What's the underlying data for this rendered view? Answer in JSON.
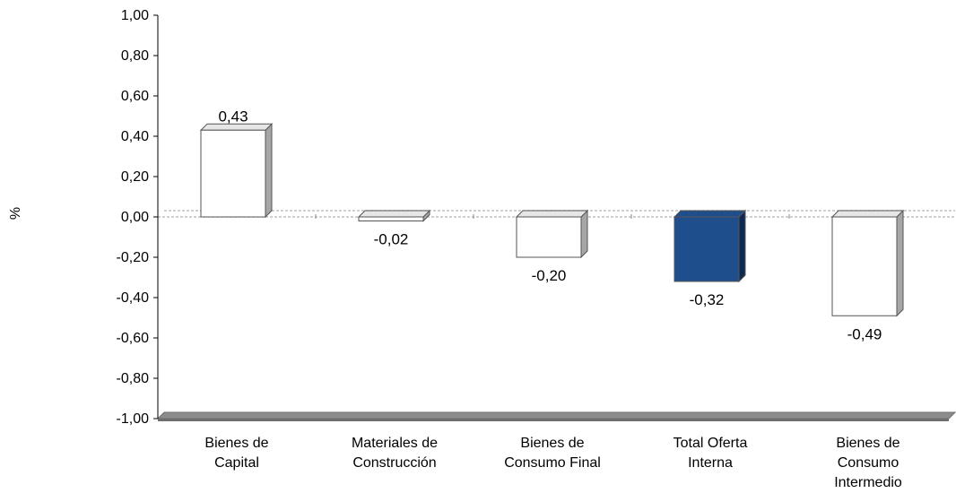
{
  "chart_data": {
    "type": "bar",
    "title": "",
    "xlabel": "",
    "ylabel": "%",
    "ylim": [
      -1.0,
      1.0
    ],
    "ytick_step": 0.2,
    "yticks": [
      "1,00",
      "0,80",
      "0,60",
      "0,40",
      "0,20",
      "0,00",
      "-0,20",
      "-0,40",
      "-0,60",
      "-0,80",
      "-1,00"
    ],
    "categories": [
      [
        "Bienes de",
        "Capital"
      ],
      [
        "Materiales de",
        "Construcción"
      ],
      [
        "Bienes de",
        "Consumo Final"
      ],
      [
        "Total Oferta",
        "Interna"
      ],
      [
        "Bienes de",
        "Consumo",
        "Intermedio"
      ]
    ],
    "values": [
      0.43,
      -0.02,
      -0.2,
      -0.32,
      -0.49
    ],
    "value_labels": [
      "0,43",
      "-0,02",
      "-0,20",
      "-0,32",
      "-0,49"
    ],
    "highlight_index": 3,
    "colors": {
      "bar": "#ffffff",
      "highlight": "#1f4e8c",
      "highlight_side": "#0d2a55",
      "side": "#a6a6a6",
      "edge": "#555555",
      "floor": "#8c8c8c",
      "zero_line": "#bfbfbf"
    },
    "grid": false,
    "legend": "none"
  }
}
